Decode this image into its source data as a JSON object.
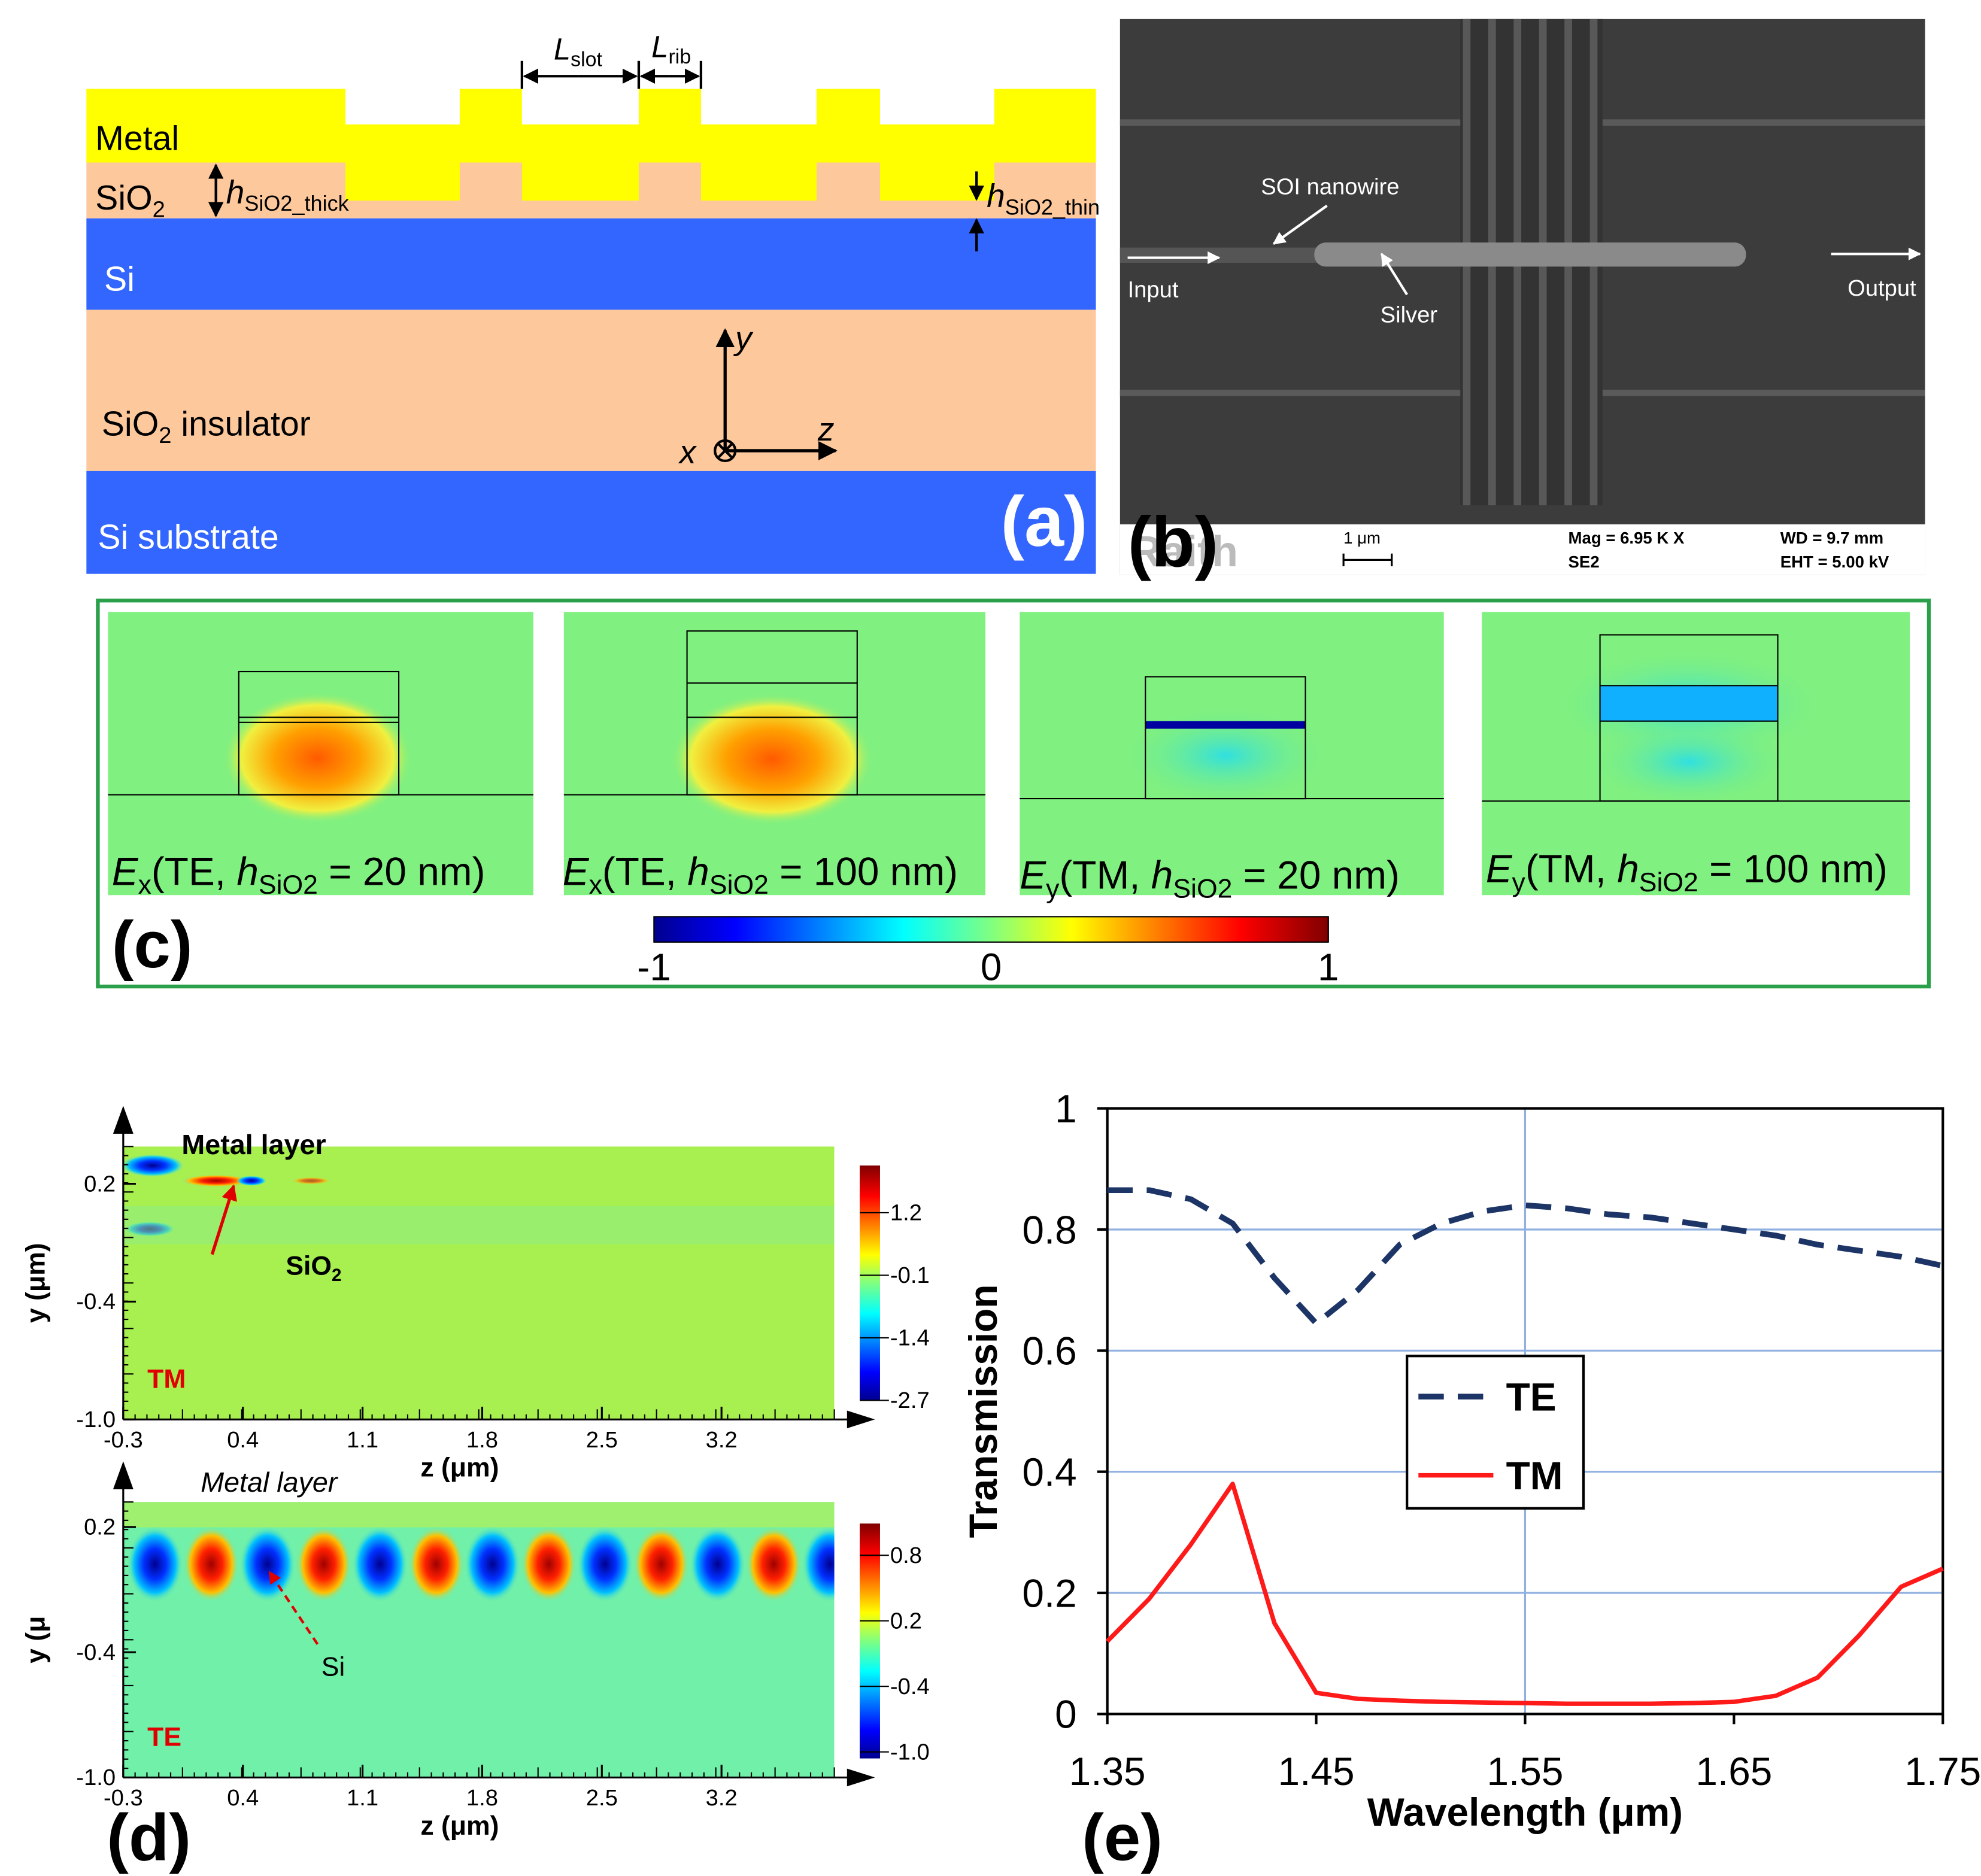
{
  "panel_a": {
    "label": "(a)",
    "metal": "Metal",
    "sio2": {
      "main": "SiO",
      "sub": "2"
    },
    "h_thick": {
      "main": "h",
      "sub": "SiO2_thick"
    },
    "h_thin": {
      "main": "h",
      "sub": "SiO2_thin"
    },
    "si": "Si",
    "insulator": {
      "main": "SiO",
      "sub": "2",
      "rest": " insulator"
    },
    "substrate": "Si substrate",
    "l_slot": {
      "main": "L",
      "sub": "slot"
    },
    "l_rib": {
      "main": "L",
      "sub": "rib"
    },
    "axes": {
      "y": "y",
      "z": "z",
      "x": "x"
    }
  },
  "panel_b": {
    "label": "(b)",
    "soi": "SOI nanowire",
    "input": "Input",
    "output": "Output",
    "silver": "Silver",
    "logo": "Raith",
    "scale": "1 μm",
    "mag": "Mag =  6.95 K X",
    "se": "SE2",
    "wd": "WD =  9.7 mm",
    "eht": "EHT =  5.00 kV"
  },
  "panel_c": {
    "label": "(c)",
    "modes": [
      {
        "field": "E",
        "comp": "x",
        "pre": "(TE, ",
        "h": "h",
        "hsub": "SiO2",
        "post": " = 20 nm)"
      },
      {
        "field": "E",
        "comp": "x",
        "pre": "(TE, ",
        "h": "h",
        "hsub": "SiO2",
        "post": " = 100 nm)"
      },
      {
        "field": "E",
        "comp": "y",
        "pre": "(TM, ",
        "h": "h",
        "hsub": "SiO2",
        "post": " = 20 nm)"
      },
      {
        "field": "E",
        "comp": "y",
        "pre": "(TM, ",
        "h": "h",
        "hsub": "SiO2",
        "post": " = 100 nm)"
      }
    ],
    "colorbar": {
      "lim": [
        -1,
        1
      ],
      "ticks": [
        -1,
        0,
        1
      ]
    }
  },
  "panel_d": {
    "label": "(d)",
    "maps": [
      {
        "mode": "TM",
        "title": "Metal layer",
        "pointer": {
          "main": "SiO",
          "sub": "2"
        },
        "xlabel": "z (μm)",
        "ylabel": "y (μm)",
        "xlim": [
          -0.3,
          3.86
        ],
        "ylim": [
          -1,
          0.39
        ],
        "xticks": [
          -0.3,
          0.4,
          1.1,
          1.8,
          2.5,
          3.2
        ],
        "yticks": [
          0.2,
          -0.4,
          {
            "value": -1,
            "label": "-1.0"
          }
        ],
        "cblim": [
          -2.7,
          2.18
        ],
        "cbticks": [
          1.2,
          -0.1,
          -1.4,
          -2.7
        ]
      },
      {
        "mode": "TE",
        "title": "Metal layer",
        "pointer": {
          "main": "Si",
          "sub": ""
        },
        "xlabel": "z (μm)",
        "ylabel": "y (μ",
        "xlim": [
          -0.3,
          3.86
        ],
        "ylim": [
          -1,
          0.32
        ],
        "xticks": [
          -0.3,
          0.4,
          1.1,
          1.8,
          2.5,
          3.2
        ],
        "yticks": [
          0.2,
          -0.4,
          {
            "value": -1,
            "label": "-1.0"
          }
        ],
        "cblim": [
          -1.06,
          1.09
        ],
        "cbticks": [
          0.8,
          0.2,
          -0.4,
          {
            "value": -1,
            "label": "-1.0"
          }
        ]
      }
    ]
  },
  "chart_data": {
    "type": "line",
    "label": "(e)",
    "xlabel": "Wavelength (μm)",
    "ylabel": "Transmission",
    "x": [
      1.35,
      1.37,
      1.39,
      1.41,
      1.43,
      1.45,
      1.47,
      1.49,
      1.51,
      1.53,
      1.55,
      1.57,
      1.59,
      1.61,
      1.63,
      1.65,
      1.67,
      1.69,
      1.71,
      1.73,
      1.75
    ],
    "series": [
      {
        "name": "TE",
        "color": "#1c3566",
        "dash": true,
        "values": [
          0.865,
          0.865,
          0.85,
          0.81,
          0.72,
          0.645,
          0.7,
          0.775,
          0.81,
          0.83,
          0.84,
          0.835,
          0.825,
          0.82,
          0.81,
          0.8,
          0.79,
          0.775,
          0.765,
          0.755,
          0.74
        ]
      },
      {
        "name": "TM",
        "color": "#ff1a1a",
        "dash": false,
        "values": [
          0.12,
          0.19,
          0.28,
          0.38,
          0.15,
          0.035,
          0.025,
          0.022,
          0.02,
          0.019,
          0.018,
          0.017,
          0.017,
          0.017,
          0.018,
          0.02,
          0.03,
          0.06,
          0.13,
          0.21,
          0.24
        ]
      }
    ],
    "xlim": [
      1.35,
      1.75
    ],
    "ylim": [
      0,
      1
    ],
    "xticks": [
      1.35,
      1.45,
      1.55,
      1.65,
      1.75
    ],
    "yticks": [
      0,
      0.2,
      0.4,
      0.6,
      0.8,
      1
    ],
    "xgrid": [
      1.55
    ],
    "grid": true,
    "legend": "center"
  }
}
